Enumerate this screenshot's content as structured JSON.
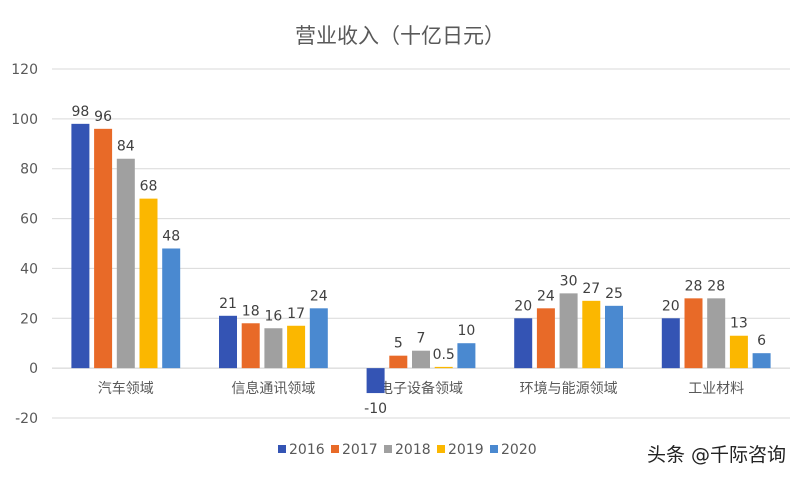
{
  "chart_data": {
    "type": "bar",
    "title": "营业收入（十亿日元）",
    "categories": [
      "汽车领域",
      "信息通讯领域",
      "电子设备领域",
      "环境与能源领域",
      "工业材料"
    ],
    "series": [
      {
        "name": "2016",
        "color": "#3454b4",
        "values": [
          98,
          21,
          -10,
          20,
          20
        ]
      },
      {
        "name": "2017",
        "color": "#e86a28",
        "values": [
          96,
          18,
          5,
          24,
          28
        ]
      },
      {
        "name": "2018",
        "color": "#a0a0a0",
        "values": [
          84,
          16,
          7,
          30,
          28
        ]
      },
      {
        "name": "2019",
        "color": "#fbb700",
        "values": [
          68,
          17,
          0.5,
          27,
          13
        ]
      },
      {
        "name": "2020",
        "color": "#4a89d0",
        "values": [
          48,
          24,
          10,
          25,
          6
        ]
      }
    ],
    "ylim": [
      -20,
      120
    ],
    "yticks": [
      -20,
      0,
      20,
      40,
      60,
      80,
      100,
      120
    ],
    "grid": true,
    "legend": "bottom"
  },
  "watermark": "头条 @千际咨询"
}
